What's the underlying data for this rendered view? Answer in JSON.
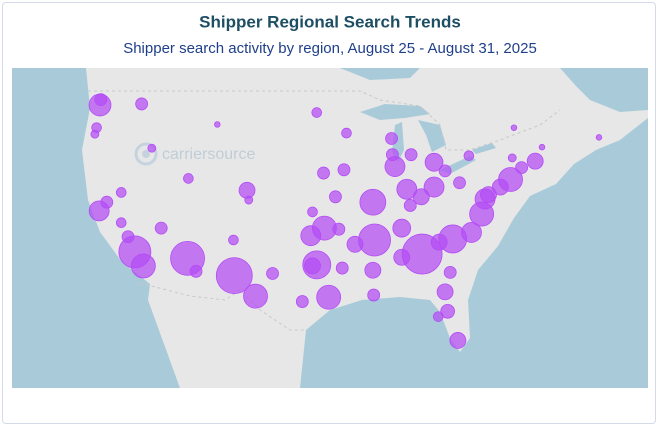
{
  "chart_data": {
    "type": "bubble-map",
    "title": "Shipper Regional Search Trends",
    "subtitle": "Shipper search activity by region, August 25 - August 31, 2025",
    "watermark": "carriersource",
    "color": "#b44cf5",
    "bubbles": [
      {
        "lon": -122.3,
        "lat": 47.6,
        "size": 30
      },
      {
        "lon": -122.2,
        "lat": 48.1,
        "size": 9
      },
      {
        "lon": -122.7,
        "lat": 45.5,
        "size": 6
      },
      {
        "lon": -122.9,
        "lat": 44.9,
        "size": 4
      },
      {
        "lon": -117.4,
        "lat": 47.7,
        "size": 9
      },
      {
        "lon": -116.2,
        "lat": 43.6,
        "size": 4
      },
      {
        "lon": -108.5,
        "lat": 45.8,
        "size": 2
      },
      {
        "lon": -105.0,
        "lat": 39.7,
        "size": 16
      },
      {
        "lon": -104.8,
        "lat": 38.8,
        "size": 4
      },
      {
        "lon": -111.9,
        "lat": 40.8,
        "size": 6
      },
      {
        "lon": -122.4,
        "lat": 37.8,
        "size": 25
      },
      {
        "lon": -121.5,
        "lat": 38.6,
        "size": 9
      },
      {
        "lon": -119.8,
        "lat": 39.5,
        "size": 6
      },
      {
        "lon": -119.8,
        "lat": 36.7,
        "size": 6
      },
      {
        "lon": -119.0,
        "lat": 35.4,
        "size": 9
      },
      {
        "lon": -118.2,
        "lat": 34.0,
        "size": 64
      },
      {
        "lon": -117.2,
        "lat": 32.7,
        "size": 36
      },
      {
        "lon": -115.1,
        "lat": 36.2,
        "size": 9
      },
      {
        "lon": -112.0,
        "lat": 33.4,
        "size": 72
      },
      {
        "lon": -111.0,
        "lat": 32.2,
        "size": 9
      },
      {
        "lon": -106.6,
        "lat": 35.1,
        "size": 6
      },
      {
        "lon": -106.5,
        "lat": 31.8,
        "size": 81
      },
      {
        "lon": -104.0,
        "lat": 29.9,
        "size": 36
      },
      {
        "lon": -102.0,
        "lat": 32.0,
        "size": 9
      },
      {
        "lon": -96.8,
        "lat": 32.8,
        "size": 49
      },
      {
        "lon": -97.3,
        "lat": 32.7,
        "size": 16
      },
      {
        "lon": -95.4,
        "lat": 29.8,
        "size": 36
      },
      {
        "lon": -98.5,
        "lat": 29.4,
        "size": 9
      },
      {
        "lon": -97.5,
        "lat": 35.5,
        "size": 25
      },
      {
        "lon": -95.9,
        "lat": 36.2,
        "size": 36
      },
      {
        "lon": -94.6,
        "lat": 39.1,
        "size": 9
      },
      {
        "lon": -97.3,
        "lat": 37.7,
        "size": 6
      },
      {
        "lon": -96.0,
        "lat": 41.3,
        "size": 9
      },
      {
        "lon": -93.3,
        "lat": 45.0,
        "size": 6
      },
      {
        "lon": -96.8,
        "lat": 46.9,
        "size": 6
      },
      {
        "lon": -93.6,
        "lat": 41.6,
        "size": 9
      },
      {
        "lon": -94.2,
        "lat": 36.1,
        "size": 9
      },
      {
        "lon": -90.0,
        "lat": 35.1,
        "size": 64
      },
      {
        "lon": -92.3,
        "lat": 34.7,
        "size": 16
      },
      {
        "lon": -93.8,
        "lat": 32.5,
        "size": 9
      },
      {
        "lon": -90.2,
        "lat": 32.3,
        "size": 16
      },
      {
        "lon": -90.1,
        "lat": 30.0,
        "size": 9
      },
      {
        "lon": -90.2,
        "lat": 38.6,
        "size": 42
      },
      {
        "lon": -87.6,
        "lat": 41.9,
        "size": 25
      },
      {
        "lon": -87.9,
        "lat": 43.0,
        "size": 9
      },
      {
        "lon": -88.0,
        "lat": 44.5,
        "size": 9
      },
      {
        "lon": -85.7,
        "lat": 43.0,
        "size": 9
      },
      {
        "lon": -83.0,
        "lat": 42.3,
        "size": 20
      },
      {
        "lon": -86.2,
        "lat": 39.8,
        "size": 25
      },
      {
        "lon": -85.8,
        "lat": 38.3,
        "size": 9
      },
      {
        "lon": -86.8,
        "lat": 36.2,
        "size": 20
      },
      {
        "lon": -84.4,
        "lat": 33.8,
        "size": 100
      },
      {
        "lon": -86.8,
        "lat": 33.5,
        "size": 16
      },
      {
        "lon": -83.0,
        "lat": 40.0,
        "size": 25
      },
      {
        "lon": -84.5,
        "lat": 39.1,
        "size": 16
      },
      {
        "lon": -81.7,
        "lat": 41.5,
        "size": 9
      },
      {
        "lon": -80.0,
        "lat": 40.4,
        "size": 9
      },
      {
        "lon": -80.8,
        "lat": 35.2,
        "size": 49
      },
      {
        "lon": -78.6,
        "lat": 35.8,
        "size": 25
      },
      {
        "lon": -82.4,
        "lat": 34.9,
        "size": 16
      },
      {
        "lon": -81.1,
        "lat": 32.1,
        "size": 9
      },
      {
        "lon": -81.7,
        "lat": 30.3,
        "size": 16
      },
      {
        "lon": -81.4,
        "lat": 28.5,
        "size": 12
      },
      {
        "lon": -82.5,
        "lat": 28.0,
        "size": 6
      },
      {
        "lon": -80.2,
        "lat": 25.8,
        "size": 16
      },
      {
        "lon": -77.4,
        "lat": 37.5,
        "size": 36
      },
      {
        "lon": -77.0,
        "lat": 38.9,
        "size": 25
      },
      {
        "lon": -76.6,
        "lat": 39.3,
        "size": 16
      },
      {
        "lon": -75.2,
        "lat": 40.0,
        "size": 16
      },
      {
        "lon": -74.0,
        "lat": 40.7,
        "size": 36
      },
      {
        "lon": -71.1,
        "lat": 42.4,
        "size": 16
      },
      {
        "lon": -72.7,
        "lat": 41.8,
        "size": 9
      },
      {
        "lon": -73.8,
        "lat": 42.7,
        "size": 4
      },
      {
        "lon": -78.9,
        "lat": 42.9,
        "size": 6
      },
      {
        "lon": -70.3,
        "lat": 43.7,
        "size": 2
      },
      {
        "lon": -73.6,
        "lat": 45.5,
        "size": 2
      },
      {
        "lon": -63.6,
        "lat": 44.6,
        "size": 2
      }
    ]
  }
}
